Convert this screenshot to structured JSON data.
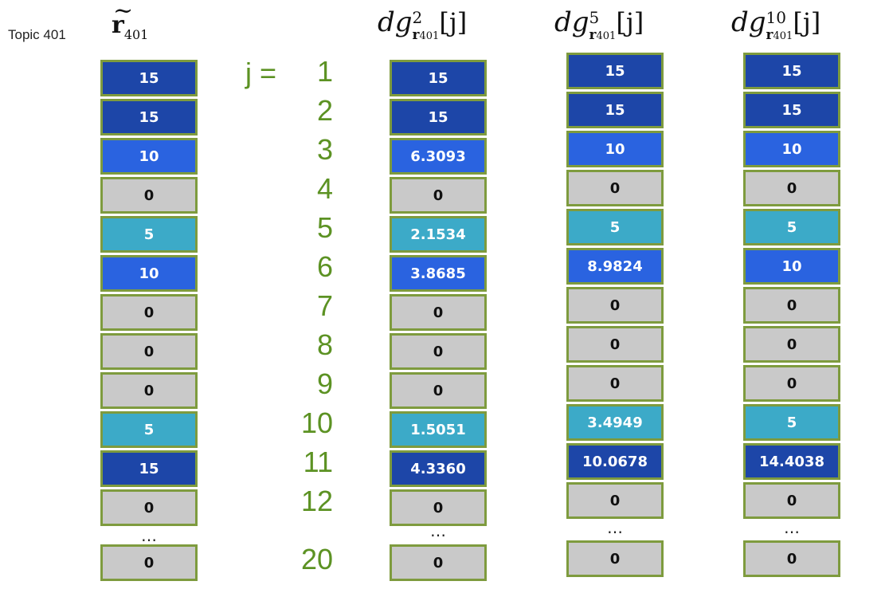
{
  "topic_label": "Topic 401",
  "headers": {
    "r": {
      "base": "r",
      "sub": "401"
    },
    "dg2": {
      "base": "dg",
      "sup": "2",
      "sub_bold": "r",
      "sub": "401",
      "arg": "[j]"
    },
    "dg5": {
      "base": "dg",
      "sup": "5",
      "sub_bold": "r",
      "sub": "401",
      "arg": "[j]"
    },
    "dg10": {
      "base": "dg",
      "sup": "10",
      "sub_bold": "r",
      "sub": "401",
      "arg": "[j]"
    }
  },
  "j_prefix": "j =",
  "j_labels": [
    "1",
    "2",
    "3",
    "4",
    "5",
    "6",
    "7",
    "8",
    "9",
    "10",
    "11",
    "12",
    "20"
  ],
  "ellipsis": "…",
  "level_colors": {
    "15": "#1d46a8",
    "10": "#2a63e0",
    "5": "#3caac8",
    "0": "#c9c9c9"
  },
  "border_color": "#7e9b3e",
  "label_color": "#5c9223",
  "columns": [
    {
      "id": "r",
      "levels": [
        "15",
        "15",
        "10",
        "0",
        "5",
        "10",
        "0",
        "0",
        "0",
        "5",
        "15",
        "0",
        "0"
      ],
      "values": [
        "15",
        "15",
        "10",
        "0",
        "5",
        "10",
        "0",
        "0",
        "0",
        "5",
        "15",
        "0",
        "0"
      ]
    },
    {
      "id": "dg2",
      "levels": [
        "15",
        "15",
        "10",
        "0",
        "5",
        "10",
        "0",
        "0",
        "0",
        "5",
        "15",
        "0",
        "0"
      ],
      "values": [
        "15",
        "15",
        "6.3093",
        "0",
        "2.1534",
        "3.8685",
        "0",
        "0",
        "0",
        "1.5051",
        "4.3360",
        "0",
        "0"
      ]
    },
    {
      "id": "dg5",
      "levels": [
        "15",
        "15",
        "10",
        "0",
        "5",
        "10",
        "0",
        "0",
        "0",
        "5",
        "15",
        "0",
        "0"
      ],
      "values": [
        "15",
        "15",
        "10",
        "0",
        "5",
        "8.9824",
        "0",
        "0",
        "0",
        "3.4949",
        "10.0678",
        "0",
        "0"
      ]
    },
    {
      "id": "dg10",
      "levels": [
        "15",
        "15",
        "10",
        "0",
        "5",
        "10",
        "0",
        "0",
        "0",
        "5",
        "15",
        "0",
        "0"
      ],
      "values": [
        "15",
        "15",
        "10",
        "0",
        "5",
        "10",
        "0",
        "0",
        "0",
        "5",
        "14.4038",
        "0",
        "0"
      ]
    }
  ]
}
